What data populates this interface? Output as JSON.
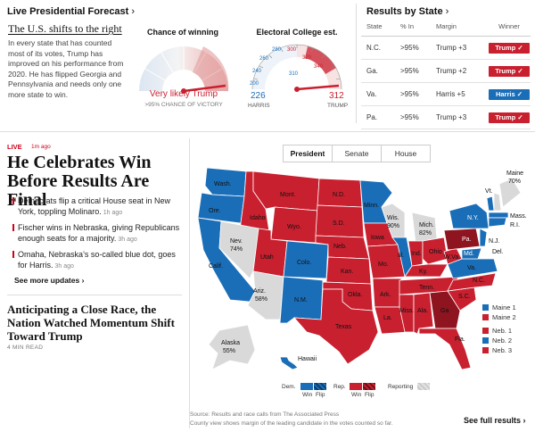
{
  "forecast": {
    "header": "Live Presidential Forecast",
    "chevron": "›",
    "headline": "The U.S. shifts to the right",
    "body": "In every state that has counted most of its votes, Trump has improved on his performance from 2020. He has flipped Georgia and Pennsylvania and needs only one more state to win.",
    "gauge1": {
      "title": "Chance of winning",
      "verdict": "Very likely Trump",
      "sub": ">95% CHANCE OF VICTORY"
    },
    "gauge2": {
      "title": "Electoral College est.",
      "ticks": [
        "200",
        "240",
        "260",
        "280",
        "300",
        "320",
        "340",
        "310"
      ],
      "harris_val": "226",
      "harris_label": "HARRIS",
      "trump_val": "312",
      "trump_label": "TRUMP"
    }
  },
  "results": {
    "header": "Results by State",
    "chevron": "›",
    "columns": [
      "State",
      "% In",
      "Margin",
      "Winner"
    ],
    "rows": [
      {
        "state": "N.C.",
        "pct": ">95%",
        "margin": "Trump +3",
        "winner": "Trump ✓",
        "party": "rep"
      },
      {
        "state": "Ga.",
        "pct": ">95%",
        "margin": "Trump +2",
        "winner": "Trump ✓",
        "party": "rep"
      },
      {
        "state": "Va.",
        "pct": ">95%",
        "margin": "Harris +5",
        "winner": "Harris ✓",
        "party": "dem"
      },
      {
        "state": "Pa.",
        "pct": ">95%",
        "margin": "Trump +3",
        "winner": "Trump ✓",
        "party": "rep"
      }
    ]
  },
  "story": {
    "live": "LIVE",
    "live_ago": "1m ago",
    "headline": "He Celebrates Win Before Results Are Final",
    "bullets": [
      {
        "text": "Democrats flip a critical House seat in New York, toppling Molinaro.",
        "ago": "1h ago"
      },
      {
        "text": "Fischer wins in Nebraska, giving Republicans enough seats for a majority.",
        "ago": "3h ago"
      },
      {
        "text": "Omaha, Nebraska’s so-called blue dot, goes for Harris.",
        "ago": "3h ago"
      }
    ],
    "see_more": "See more updates",
    "see_more_chev": "›",
    "story2_headline": "Anticipating a Close Race, the Nation Watched Momentum Shift Toward Trump",
    "read_time": "4 MIN READ"
  },
  "map": {
    "tabs": [
      "President",
      "Senate",
      "House"
    ],
    "active_tab": "President",
    "labels": {
      "wash": "Wash.",
      "ore": "Ore.",
      "calif": "Calif.",
      "idaho": "Idaho",
      "mont": "Mont.",
      "wyo": "Wyo.",
      "nev": "Nev.",
      "nev_pct": "74%",
      "utah": "Utah",
      "colo": "Colo.",
      "ariz": "Ariz.",
      "ariz_pct": "58%",
      "nm": "N.M.",
      "nd": "N.D.",
      "sd": "S.D.",
      "neb": "Neb.",
      "kan": "Kan.",
      "okla": "Okla.",
      "texas": "Texas",
      "minn": "Minn.",
      "iowa": "Iowa",
      "mo": "Mo.",
      "ark": "Ark.",
      "la": "La.",
      "wis": "Wis.",
      "wis_pct": "90%",
      "ill": "Ill.",
      "mich": "Mich.",
      "mich_pct": "82%",
      "ind": "Ind.",
      "ohio": "Ohio",
      "ky": "Ky.",
      "tenn": "Tenn.",
      "miss": "Miss.",
      "ala": "Ala.",
      "ga": "Ga",
      "fla": "Fla.",
      "sc": "S.C.",
      "nc": "N.C.",
      "va": "Va.",
      "wva": "W.Va.",
      "pa": "Pa.",
      "ny": "N.Y.",
      "vt": "Vt.",
      "maine": "Maine",
      "maine_pct": "70%",
      "mass": "Mass.",
      "ri": "R.I.",
      "nj": "N.J.",
      "del": "Del.",
      "md": "Md.",
      "alaska": "Alaska",
      "alaska_pct": "55%",
      "hawaii": "Hawaii"
    },
    "districts": [
      {
        "label": "Maine 1",
        "party": "dem"
      },
      {
        "label": "Maine 2",
        "party": "rep"
      },
      {
        "label": "Neb. 1",
        "party": "rep"
      },
      {
        "label": "Neb. 2",
        "party": "dem"
      },
      {
        "label": "Neb. 3",
        "party": "rep"
      }
    ],
    "legend": {
      "dem": "Dem.",
      "rep": "Rep.",
      "win": "Win",
      "flip": "Flip",
      "reporting": "Reporting"
    },
    "source1": "Source: Results and race calls from The Associated Press",
    "source2": "County view shows margin of the leading candidate in the votes counted so far.",
    "full_results": "See full results",
    "full_chev": "›"
  },
  "colors": {
    "dem": "#1a6eb8",
    "rep": "#c8202f",
    "dem_light": "#a9c6e6",
    "rep_light": "#eaa1a1",
    "reporting": "#d9d9d9"
  }
}
